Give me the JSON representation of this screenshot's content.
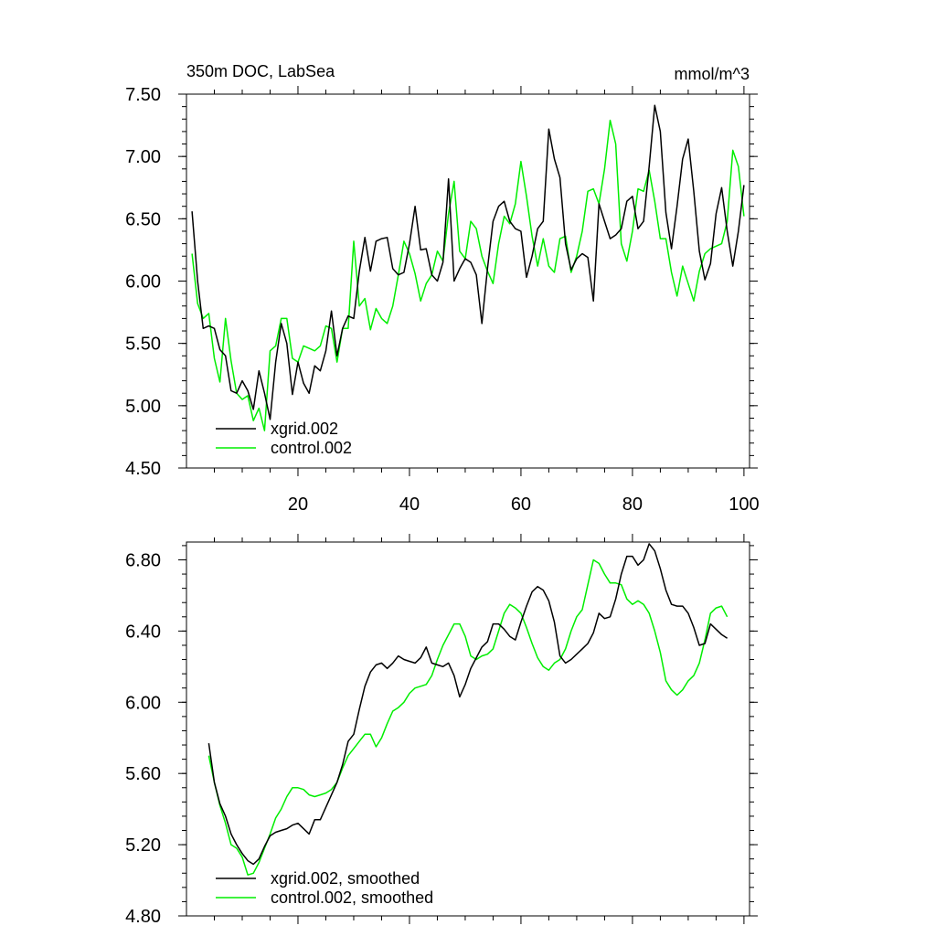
{
  "chart_data": [
    {
      "type": "line",
      "title": "350m DOC, LabSea",
      "units": "mmol/m^3",
      "xlim": [
        0,
        101
      ],
      "ylim": [
        4.5,
        7.5
      ],
      "yticks": [
        4.5,
        5.0,
        5.5,
        6.0,
        6.5,
        7.0,
        7.5
      ],
      "ytick_labels": [
        "4.50",
        "5.00",
        "5.50",
        "6.00",
        "6.50",
        "7.00",
        "7.50"
      ],
      "xticks": [
        20,
        40,
        60,
        80,
        100
      ],
      "xtick_labels": [
        "20",
        "40",
        "60",
        "80",
        "100"
      ],
      "legend_position": "bottom-left",
      "grid": false,
      "series": [
        {
          "name": "xgrid.002",
          "color": "#000000",
          "x": [
            1,
            2,
            3,
            4,
            5,
            6,
            7,
            8,
            9,
            10,
            11,
            12,
            13,
            14,
            15,
            16,
            17,
            18,
            19,
            20,
            21,
            22,
            23,
            24,
            25,
            26,
            27,
            28,
            29,
            30,
            31,
            32,
            33,
            34,
            35,
            36,
            37,
            38,
            39,
            40,
            41,
            42,
            43,
            44,
            45,
            46,
            47,
            48,
            49,
            50,
            51,
            52,
            53,
            54,
            55,
            56,
            57,
            58,
            59,
            60,
            61,
            62,
            63,
            64,
            65,
            66,
            67,
            68,
            69,
            70,
            71,
            72,
            73,
            74,
            75,
            76,
            77,
            78,
            79,
            80,
            81,
            82,
            83,
            84,
            85,
            86,
            87,
            88,
            89,
            90,
            91,
            92,
            93,
            94,
            95,
            96,
            97,
            98,
            99,
            100
          ],
          "y": [
            6.56,
            6.0,
            5.62,
            5.64,
            5.62,
            5.45,
            5.4,
            5.12,
            5.1,
            5.2,
            5.12,
            4.97,
            5.28,
            5.1,
            4.89,
            5.35,
            5.66,
            5.5,
            5.09,
            5.35,
            5.18,
            5.1,
            5.32,
            5.28,
            5.44,
            5.76,
            5.4,
            5.62,
            5.72,
            5.7,
            6.08,
            6.35,
            6.08,
            6.32,
            6.34,
            6.35,
            6.1,
            6.05,
            6.07,
            6.3,
            6.6,
            6.25,
            6.26,
            6.05,
            6.0,
            6.15,
            6.82,
            6.0,
            6.1,
            6.18,
            6.15,
            6.05,
            5.66,
            6.1,
            6.48,
            6.6,
            6.64,
            6.48,
            6.42,
            6.4,
            6.03,
            6.2,
            6.42,
            6.48,
            7.22,
            6.98,
            6.83,
            6.3,
            6.09,
            6.18,
            6.22,
            6.19,
            5.84,
            6.62,
            6.48,
            6.34,
            6.37,
            6.42,
            6.64,
            6.68,
            6.42,
            6.48,
            6.92,
            7.41,
            7.2,
            6.55,
            6.26,
            6.6,
            6.98,
            7.14,
            6.72,
            6.24,
            6.01,
            6.14,
            6.54,
            6.75,
            6.4,
            6.12,
            6.4,
            6.77
          ]
        },
        {
          "name": "control.002",
          "color": "#00ee00",
          "x": [
            1,
            2,
            3,
            4,
            5,
            6,
            7,
            8,
            9,
            10,
            11,
            12,
            13,
            14,
            15,
            16,
            17,
            18,
            19,
            20,
            21,
            22,
            23,
            24,
            25,
            26,
            27,
            28,
            29,
            30,
            31,
            32,
            33,
            34,
            35,
            36,
            37,
            38,
            39,
            40,
            41,
            42,
            43,
            44,
            45,
            46,
            47,
            48,
            49,
            50,
            51,
            52,
            53,
            54,
            55,
            56,
            57,
            58,
            59,
            60,
            61,
            62,
            63,
            64,
            65,
            66,
            67,
            68,
            69,
            70,
            71,
            72,
            73,
            74,
            75,
            76,
            77,
            78,
            79,
            80,
            81,
            82,
            83,
            84,
            85,
            86,
            87,
            88,
            89,
            90,
            91,
            92,
            93,
            94,
            95,
            96,
            97,
            98,
            99,
            100
          ],
          "y": [
            6.22,
            5.82,
            5.7,
            5.74,
            5.38,
            5.19,
            5.7,
            5.36,
            5.1,
            5.05,
            5.08,
            4.88,
            4.98,
            4.8,
            5.44,
            5.48,
            5.7,
            5.7,
            5.38,
            5.35,
            5.48,
            5.46,
            5.44,
            5.48,
            5.64,
            5.62,
            5.35,
            5.62,
            5.62,
            6.32,
            5.8,
            5.86,
            5.61,
            5.78,
            5.7,
            5.66,
            5.8,
            6.05,
            6.32,
            6.22,
            6.06,
            5.84,
            5.98,
            6.05,
            6.24,
            6.16,
            6.54,
            6.8,
            6.24,
            6.18,
            6.48,
            6.42,
            6.2,
            6.08,
            5.98,
            6.3,
            6.52,
            6.46,
            6.62,
            6.96,
            6.68,
            6.36,
            6.12,
            6.34,
            6.12,
            6.07,
            6.34,
            6.36,
            6.07,
            6.2,
            6.4,
            6.72,
            6.74,
            6.62,
            6.9,
            7.29,
            7.1,
            6.3,
            6.16,
            6.4,
            6.74,
            6.72,
            6.89,
            6.64,
            6.34,
            6.34,
            6.07,
            5.88,
            6.12,
            5.98,
            5.84,
            6.08,
            6.22,
            6.26,
            6.28,
            6.3,
            6.48,
            7.05,
            6.92,
            6.52
          ]
        }
      ]
    },
    {
      "type": "line",
      "xlim": [
        0,
        101
      ],
      "ylim": [
        4.8,
        6.9
      ],
      "yticks": [
        4.8,
        5.2,
        5.6,
        6.0,
        6.4,
        6.8
      ],
      "ytick_labels": [
        "4.80",
        "5.20",
        "5.60",
        "6.00",
        "6.40",
        "6.80"
      ],
      "xticks": [
        20,
        40,
        60,
        80,
        100
      ],
      "legend_position": "bottom-left",
      "grid": false,
      "series": [
        {
          "name": "xgrid.002, smoothed",
          "color": "#000000",
          "x": [
            4,
            5,
            6,
            7,
            8,
            9,
            10,
            11,
            12,
            13,
            14,
            15,
            16,
            17,
            18,
            19,
            20,
            21,
            22,
            23,
            24,
            25,
            26,
            27,
            28,
            29,
            30,
            31,
            32,
            33,
            34,
            35,
            36,
            37,
            38,
            39,
            40,
            41,
            42,
            43,
            44,
            45,
            46,
            47,
            48,
            49,
            50,
            51,
            52,
            53,
            54,
            55,
            56,
            57,
            58,
            59,
            60,
            61,
            62,
            63,
            64,
            65,
            66,
            67,
            68,
            69,
            70,
            71,
            72,
            73,
            74,
            75,
            76,
            77,
            78,
            79,
            80,
            81,
            82,
            83,
            84,
            85,
            86,
            87,
            88,
            89,
            90,
            91,
            92,
            93,
            94,
            95,
            96,
            97
          ],
          "y": [
            5.77,
            5.55,
            5.43,
            5.36,
            5.26,
            5.2,
            5.15,
            5.11,
            5.09,
            5.12,
            5.19,
            5.25,
            5.27,
            5.28,
            5.29,
            5.31,
            5.32,
            5.29,
            5.26,
            5.34,
            5.34,
            5.41,
            5.48,
            5.55,
            5.65,
            5.78,
            5.82,
            5.96,
            6.09,
            6.17,
            6.21,
            6.22,
            6.19,
            6.22,
            6.26,
            6.24,
            6.23,
            6.22,
            6.25,
            6.31,
            6.22,
            6.21,
            6.2,
            6.22,
            6.15,
            6.03,
            6.1,
            6.19,
            6.25,
            6.31,
            6.34,
            6.44,
            6.44,
            6.41,
            6.37,
            6.35,
            6.45,
            6.54,
            6.62,
            6.65,
            6.63,
            6.57,
            6.45,
            6.26,
            6.22,
            6.24,
            6.27,
            6.3,
            6.33,
            6.39,
            6.5,
            6.47,
            6.48,
            6.58,
            6.72,
            6.82,
            6.82,
            6.77,
            6.8,
            6.89,
            6.85,
            6.75,
            6.63,
            6.55,
            6.54,
            6.54,
            6.5,
            6.42,
            6.32,
            6.33,
            6.44,
            6.41,
            6.38,
            6.36
          ]
        },
        {
          "name": "control.002, smoothed",
          "color": "#00ee00",
          "x": [
            4,
            5,
            6,
            7,
            8,
            9,
            10,
            11,
            12,
            13,
            14,
            15,
            16,
            17,
            18,
            19,
            20,
            21,
            22,
            23,
            24,
            25,
            26,
            27,
            28,
            29,
            30,
            31,
            32,
            33,
            34,
            35,
            36,
            37,
            38,
            39,
            40,
            41,
            42,
            43,
            44,
            45,
            46,
            47,
            48,
            49,
            50,
            51,
            52,
            53,
            54,
            55,
            56,
            57,
            58,
            59,
            60,
            61,
            62,
            63,
            64,
            65,
            66,
            67,
            68,
            69,
            70,
            71,
            72,
            73,
            74,
            75,
            76,
            77,
            78,
            79,
            80,
            81,
            82,
            83,
            84,
            85,
            86,
            87,
            88,
            89,
            90,
            91,
            92,
            93,
            94,
            95,
            96,
            97
          ],
          "y": [
            5.7,
            5.55,
            5.42,
            5.32,
            5.2,
            5.18,
            5.13,
            5.03,
            5.04,
            5.1,
            5.18,
            5.26,
            5.35,
            5.4,
            5.47,
            5.52,
            5.52,
            5.51,
            5.48,
            5.47,
            5.48,
            5.49,
            5.51,
            5.55,
            5.63,
            5.7,
            5.74,
            5.78,
            5.82,
            5.82,
            5.75,
            5.8,
            5.88,
            5.95,
            5.97,
            6.0,
            6.05,
            6.08,
            6.09,
            6.1,
            6.15,
            6.24,
            6.32,
            6.38,
            6.44,
            6.44,
            6.37,
            6.26,
            6.24,
            6.26,
            6.27,
            6.3,
            6.4,
            6.5,
            6.55,
            6.53,
            6.5,
            6.42,
            6.33,
            6.25,
            6.2,
            6.18,
            6.22,
            6.24,
            6.3,
            6.4,
            6.48,
            6.52,
            6.66,
            6.8,
            6.78,
            6.72,
            6.67,
            6.67,
            6.66,
            6.58,
            6.55,
            6.57,
            6.55,
            6.5,
            6.4,
            6.28,
            6.12,
            6.07,
            6.04,
            6.07,
            6.12,
            6.15,
            6.22,
            6.35,
            6.5,
            6.53,
            6.54,
            6.48
          ]
        }
      ]
    }
  ]
}
